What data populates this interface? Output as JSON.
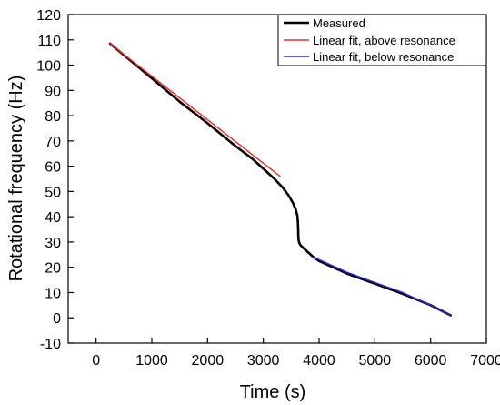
{
  "chart_data": {
    "type": "line",
    "xlabel": "Time (s)",
    "ylabel": "Rotational frequency (Hz)",
    "xlim": [
      -500,
      7000
    ],
    "ylim": [
      -10,
      120
    ],
    "x_ticks": [
      0,
      1000,
      2000,
      3000,
      4000,
      5000,
      6000,
      7000
    ],
    "y_ticks": [
      -10,
      0,
      10,
      20,
      30,
      40,
      50,
      60,
      70,
      80,
      90,
      100,
      110,
      120
    ],
    "grid": false,
    "legend_position": "top-right",
    "series": [
      {
        "name": "Measured",
        "color": "#000000",
        "x": [
          250,
          800,
          1500,
          2000,
          2500,
          2800,
          3000,
          3200,
          3350,
          3450,
          3530,
          3580,
          3610,
          3620,
          3625,
          3628,
          3632,
          3640,
          3660,
          3700,
          3800,
          3900,
          4000,
          4200,
          4500,
          5000,
          5500,
          6000,
          6360
        ],
        "y": [
          108.5,
          98.5,
          85.5,
          77,
          68,
          63,
          59,
          55,
          51.5,
          48.5,
          45.5,
          43,
          40.5,
          38,
          35,
          32,
          31,
          30,
          29,
          28,
          26,
          24,
          22.5,
          20.5,
          17.5,
          13.5,
          9.5,
          5,
          1
        ]
      },
      {
        "name": "Linear fit, above resonance",
        "color": "#e8312b",
        "x": [
          250,
          3300
        ],
        "y": [
          108.5,
          56
        ]
      },
      {
        "name": "Linear fit, below resonance",
        "color": "#2b2bd0",
        "x": [
          3900,
          4500,
          5000,
          5500,
          6000,
          6360
        ],
        "y": [
          24,
          18,
          14,
          10,
          5,
          1
        ]
      }
    ]
  }
}
